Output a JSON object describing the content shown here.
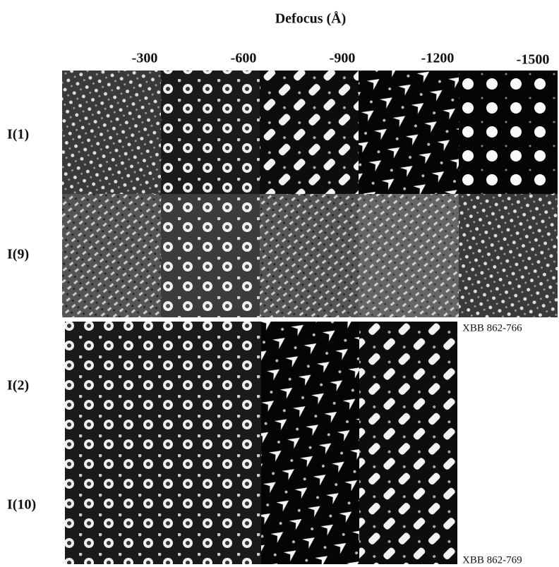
{
  "figure": {
    "title": "Defocus (Å)",
    "columns": [
      "-300",
      "-600",
      "-900",
      "-1200",
      "-1500"
    ],
    "rows": [
      "I(1)",
      "I(9)",
      "I(2)",
      "I(10)"
    ],
    "captions": [
      "XBB 862-766",
      "XBB 862-769"
    ]
  }
}
